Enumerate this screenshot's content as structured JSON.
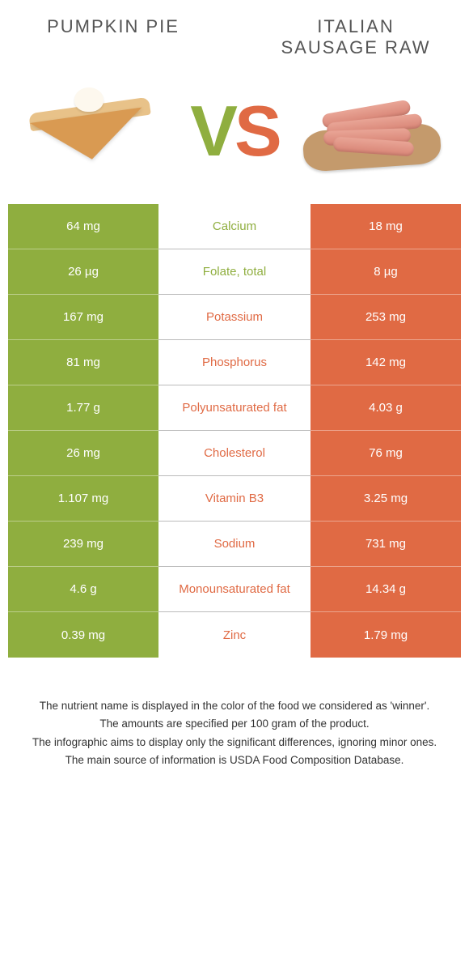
{
  "colors": {
    "left_bg": "#8fae3f",
    "right_bg": "#e06a44",
    "left_text": "#8fae3f",
    "right_text": "#e06a44",
    "header_text": "#555555",
    "footnote_text": "#333333",
    "page_bg": "#ffffff"
  },
  "header": {
    "left_title": "Pumpkin pie",
    "right_title": "Italian sausage raw"
  },
  "vs": {
    "v": "V",
    "s": "S"
  },
  "rows": [
    {
      "left": "64 mg",
      "label": "Calcium",
      "right": "18 mg",
      "winner": "left"
    },
    {
      "left": "26 µg",
      "label": "Folate, total",
      "right": "8 µg",
      "winner": "left"
    },
    {
      "left": "167 mg",
      "label": "Potassium",
      "right": "253 mg",
      "winner": "right"
    },
    {
      "left": "81 mg",
      "label": "Phosphorus",
      "right": "142 mg",
      "winner": "right"
    },
    {
      "left": "1.77 g",
      "label": "Polyunsaturated fat",
      "right": "4.03 g",
      "winner": "right"
    },
    {
      "left": "26 mg",
      "label": "Cholesterol",
      "right": "76 mg",
      "winner": "right"
    },
    {
      "left": "1.107 mg",
      "label": "Vitamin B3",
      "right": "3.25 mg",
      "winner": "right"
    },
    {
      "left": "239 mg",
      "label": "Sodium",
      "right": "731 mg",
      "winner": "right"
    },
    {
      "left": "4.6 g",
      "label": "Monounsaturated fat",
      "right": "14.34 g",
      "winner": "right"
    },
    {
      "left": "0.39 mg",
      "label": "Zinc",
      "right": "1.79 mg",
      "winner": "right"
    }
  ],
  "footnotes": [
    "The nutrient name is displayed in the color of the food we considered as 'winner'.",
    "The amounts are specified per 100 gram of the product.",
    "The infographic aims to display only the significant differences, ignoring minor ones.",
    "The main source of information is USDA Food Composition Database."
  ]
}
